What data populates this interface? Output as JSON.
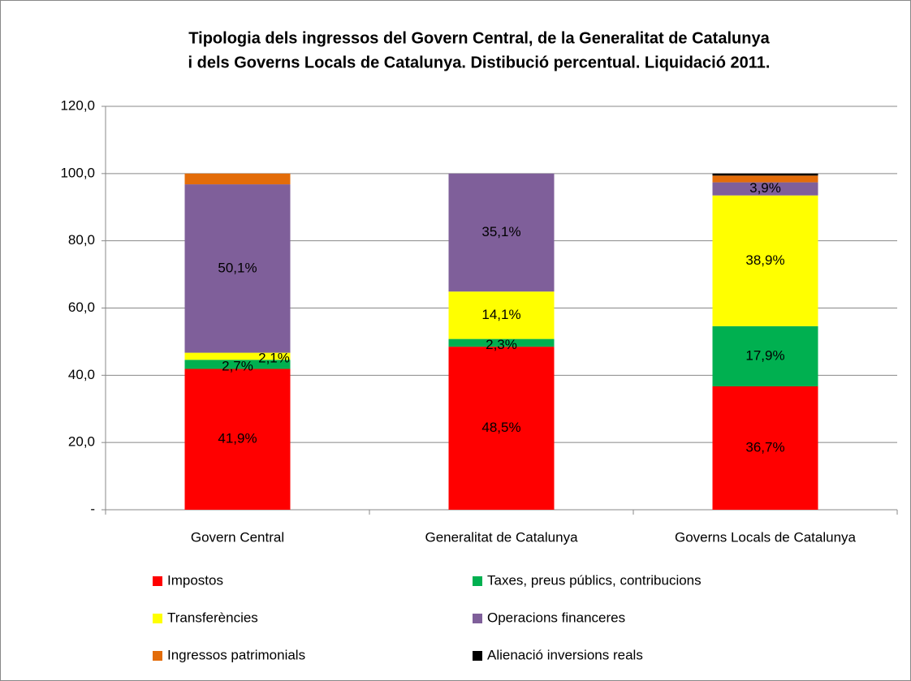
{
  "chart_data": {
    "type": "stacked_bar",
    "title": [
      "Tipologia dels ingressos del Govern Central, de la Generalitat de Catalunya",
      "i dels Governs Locals de Catalunya. Distibució percentual. Liquidació 2011."
    ],
    "categories": [
      "Govern Central",
      "Generalitat de Catalunya",
      "Governs Locals de Catalunya"
    ],
    "series": [
      {
        "name": "Impostos",
        "color": "#ff0000",
        "values": [
          41.9,
          48.5,
          36.7
        ],
        "value_labels": [
          "41,9%",
          "48,5%",
          "36,7%"
        ]
      },
      {
        "name": "Taxes, preus públics, contribucions",
        "color": "#00b050",
        "values": [
          2.7,
          2.3,
          17.9
        ],
        "value_labels": [
          "2,7%",
          "2,3%",
          "17,9%"
        ]
      },
      {
        "name": "Transferències",
        "color": "#ffff00",
        "values": [
          2.1,
          14.1,
          38.9
        ],
        "value_labels": [
          "2,1%",
          "14,1%",
          "38,9%"
        ]
      },
      {
        "name": "Operacions financeres",
        "color": "#7f5f9a",
        "values": [
          50.1,
          35.1,
          3.9
        ],
        "value_labels": [
          "50,1%",
          "35,1%",
          "3,9%"
        ]
      },
      {
        "name": "Ingressos patrimonials",
        "color": "#e36c09",
        "values": [
          3.2,
          0,
          2.0
        ],
        "value_labels": [
          null,
          null,
          null
        ]
      },
      {
        "name": "Alienació inversions reals",
        "color": "#000000",
        "values": [
          0,
          0,
          0.6
        ],
        "value_labels": [
          null,
          null,
          null
        ]
      }
    ],
    "ylim": [
      0,
      120
    ],
    "yticks": [
      {
        "value": 0,
        "label": "-"
      },
      {
        "value": 20,
        "label": "20,0"
      },
      {
        "value": 40,
        "label": "40,0"
      },
      {
        "value": 60,
        "label": "60,0"
      },
      {
        "value": 80,
        "label": "80,0"
      },
      {
        "value": 100,
        "label": "100,0"
      },
      {
        "value": 120,
        "label": "120,0"
      }
    ],
    "grid": true
  }
}
